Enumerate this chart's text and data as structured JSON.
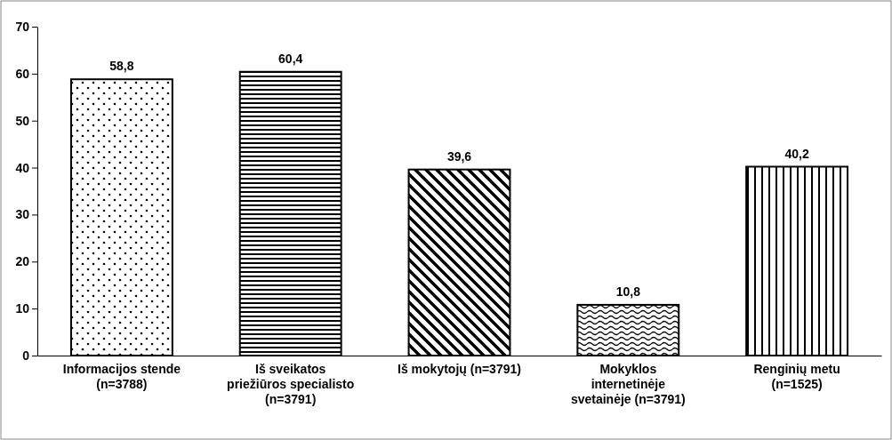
{
  "chart_data": {
    "type": "bar",
    "categories": [
      "Informacijos stende (n=3788)",
      "Iš sveikatos priežiūros specialisto (n=3791)",
      "Iš mokytojų (n=3791)",
      "Mokyklos internetinėje svetainėje (n=3791)",
      "Renginių metu (n=1525)"
    ],
    "values": [
      58.8,
      60.4,
      39.6,
      10.8,
      40.2
    ],
    "colors": [
      "#000000",
      "#000000",
      "#000000",
      "#000000",
      "#000000"
    ],
    "value_labels": [
      "58,8",
      "60,4",
      "39,6",
      "10,8",
      "40,2"
    ],
    "ylim": [
      0,
      70
    ],
    "yticks": [
      0,
      10,
      20,
      30,
      40,
      50,
      60,
      70
    ],
    "grid": false
  }
}
